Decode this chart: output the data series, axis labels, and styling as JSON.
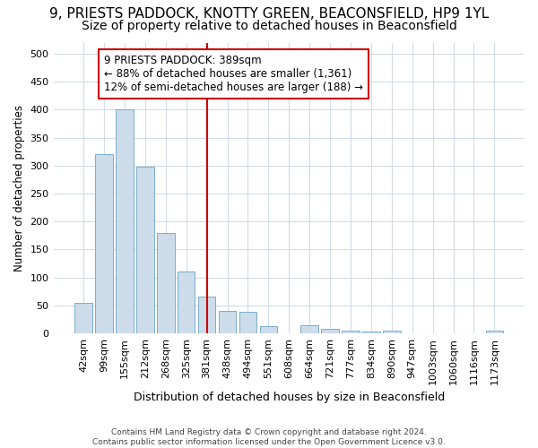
{
  "title": "9, PRIESTS PADDOCK, KNOTTY GREEN, BEACONSFIELD, HP9 1YL",
  "subtitle": "Size of property relative to detached houses in Beaconsfield",
  "xlabel": "Distribution of detached houses by size in Beaconsfield",
  "ylabel": "Number of detached properties",
  "footnote": "Contains HM Land Registry data © Crown copyright and database right 2024.\nContains public sector information licensed under the Open Government Licence v3.0.",
  "categories": [
    "42sqm",
    "99sqm",
    "155sqm",
    "212sqm",
    "268sqm",
    "325sqm",
    "381sqm",
    "438sqm",
    "494sqm",
    "551sqm",
    "608sqm",
    "664sqm",
    "721sqm",
    "777sqm",
    "834sqm",
    "890sqm",
    "947sqm",
    "1003sqm",
    "1060sqm",
    "1116sqm",
    "1173sqm"
  ],
  "values": [
    55,
    320,
    400,
    298,
    180,
    110,
    65,
    40,
    38,
    12,
    0,
    15,
    8,
    5,
    3,
    5,
    0,
    0,
    0,
    0,
    5
  ],
  "bar_color": "#ccdceb",
  "bar_edge_color": "#7aaec8",
  "property_line_idx": 6,
  "property_line_color": "#cc0000",
  "annotation_text": "9 PRIESTS PADDOCK: 389sqm\n← 88% of detached houses are smaller (1,361)\n12% of semi-detached houses are larger (188) →",
  "annotation_box_color": "#cc0000",
  "annotation_bg": "white",
  "ylim": [
    0,
    520
  ],
  "yticks": [
    0,
    50,
    100,
    150,
    200,
    250,
    300,
    350,
    400,
    450,
    500
  ],
  "title_fontsize": 11,
  "subtitle_fontsize": 10,
  "bg_color": "#ffffff",
  "plot_bg_color": "#ffffff",
  "grid_color": "#d0dce8"
}
